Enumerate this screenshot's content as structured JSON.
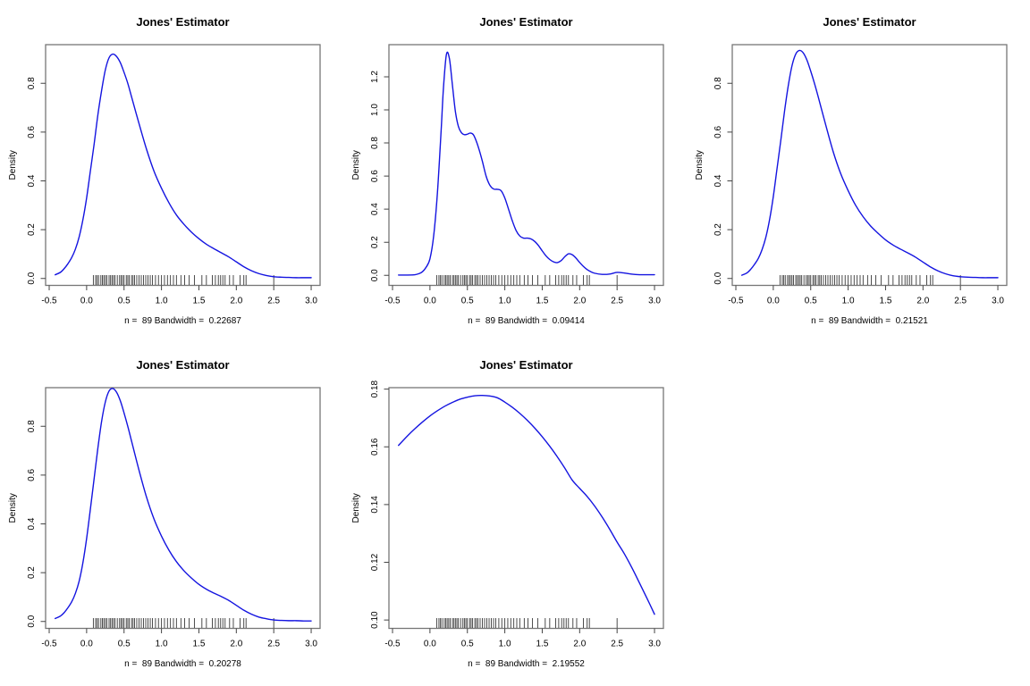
{
  "figure": {
    "background": "#ffffff",
    "curve_color": "#1414e0",
    "box_color": "#777777",
    "tick_color": "#444444",
    "text_color": "#000000",
    "rug_color": "#3a3a3a"
  },
  "rug_points": [
    0.09,
    0.12,
    0.14,
    0.16,
    0.19,
    0.21,
    0.23,
    0.25,
    0.27,
    0.3,
    0.32,
    0.34,
    0.36,
    0.38,
    0.41,
    0.44,
    0.46,
    0.48,
    0.5,
    0.53,
    0.55,
    0.57,
    0.6,
    0.62,
    0.64,
    0.67,
    0.7,
    0.73,
    0.76,
    0.79,
    0.82,
    0.85,
    0.88,
    0.92,
    0.96,
    1.0,
    1.04,
    1.08,
    1.12,
    1.16,
    1.2,
    1.26,
    1.31,
    1.37,
    1.44,
    1.54,
    1.6,
    1.68,
    1.72,
    1.76,
    1.79,
    1.82,
    1.85,
    1.91,
    1.96,
    2.05,
    2.1,
    2.13,
    2.5
  ],
  "chart_data": [
    {
      "type": "line",
      "title": "Jones' Estimator",
      "ylabel": "Density",
      "subtitle": "n =  89 Bandwidth =  0.22687",
      "n": 89,
      "bandwidth": 0.22687,
      "xlim": [
        -0.548,
        3.119
      ],
      "ylim": [
        -0.0286,
        0.9586
      ],
      "x_ticks": {
        "values": [
          -0.5,
          0,
          0.5,
          1,
          1.5,
          2,
          2.5,
          3
        ],
        "labels": [
          "-0.5",
          "0.0",
          "0.5",
          "1.0",
          "1.5",
          "2.0",
          "2.5",
          "3.0"
        ]
      },
      "y_ticks": {
        "values": [
          0,
          0.2,
          0.4,
          0.6,
          0.8
        ],
        "labels": [
          "0.0",
          "0.2",
          "0.4",
          "0.6",
          "0.8"
        ]
      },
      "curve": {
        "x": [
          -0.42,
          -0.35,
          -0.3,
          -0.25,
          -0.2,
          -0.15,
          -0.1,
          -0.05,
          0,
          0.05,
          0.1,
          0.15,
          0.2,
          0.25,
          0.3,
          0.35,
          0.4,
          0.45,
          0.5,
          0.55,
          0.6,
          0.7,
          0.8,
          0.9,
          1,
          1.1,
          1.2,
          1.3,
          1.4,
          1.5,
          1.6,
          1.7,
          1.8,
          1.9,
          2,
          2.1,
          2.2,
          2.3,
          2.4,
          2.5,
          2.6,
          2.7,
          2.8,
          2.9,
          3
        ],
        "y": [
          0.015,
          0.025,
          0.04,
          0.06,
          0.085,
          0.12,
          0.17,
          0.24,
          0.33,
          0.44,
          0.55,
          0.67,
          0.77,
          0.855,
          0.905,
          0.92,
          0.91,
          0.885,
          0.845,
          0.8,
          0.745,
          0.635,
          0.53,
          0.44,
          0.37,
          0.31,
          0.26,
          0.222,
          0.19,
          0.163,
          0.14,
          0.122,
          0.105,
          0.088,
          0.068,
          0.048,
          0.032,
          0.02,
          0.012,
          0.007,
          0.005,
          0.004,
          0.003,
          0.003,
          0.003
        ]
      },
      "grid_cell": {
        "col": 0,
        "row": 0
      }
    },
    {
      "type": "line",
      "title": "Jones' Estimator",
      "ylabel": "Density",
      "subtitle": "n =  89 Bandwidth =  0.09414",
      "n": 89,
      "bandwidth": 0.09414,
      "xlim": [
        -0.548,
        3.119
      ],
      "ylim": [
        -0.0605,
        1.394
      ],
      "x_ticks": {
        "values": [
          -0.5,
          0,
          0.5,
          1,
          1.5,
          2,
          2.5,
          3
        ],
        "labels": [
          "-0.5",
          "0.0",
          "0.5",
          "1.0",
          "1.5",
          "2.0",
          "2.5",
          "3.0"
        ]
      },
      "y_ticks": {
        "values": [
          0,
          0.2,
          0.4,
          0.6,
          0.8,
          1.0,
          1.2
        ],
        "labels": [
          "0.0",
          "0.2",
          "0.4",
          "0.6",
          "0.8",
          "1.0",
          "1.2"
        ]
      },
      "curve": {
        "x": [
          -0.42,
          -0.3,
          -0.2,
          -0.15,
          -0.1,
          -0.05,
          0,
          0.05,
          0.1,
          0.15,
          0.18,
          0.22,
          0.26,
          0.3,
          0.34,
          0.38,
          0.42,
          0.46,
          0.5,
          0.54,
          0.58,
          0.62,
          0.66,
          0.7,
          0.75,
          0.8,
          0.85,
          0.9,
          0.95,
          1,
          1.05,
          1.1,
          1.15,
          1.2,
          1.25,
          1.3,
          1.35,
          1.4,
          1.45,
          1.5,
          1.55,
          1.6,
          1.65,
          1.7,
          1.75,
          1.8,
          1.85,
          1.9,
          1.95,
          2,
          2.05,
          2.1,
          2.15,
          2.2,
          2.3,
          2.4,
          2.5,
          2.6,
          2.7,
          2.8,
          2.9,
          3
        ],
        "y": [
          0.002,
          0.002,
          0.004,
          0.01,
          0.022,
          0.05,
          0.1,
          0.24,
          0.5,
          0.88,
          1.13,
          1.335,
          1.31,
          1.15,
          0.99,
          0.9,
          0.862,
          0.85,
          0.853,
          0.86,
          0.85,
          0.81,
          0.755,
          0.69,
          0.6,
          0.545,
          0.522,
          0.52,
          0.512,
          0.468,
          0.4,
          0.33,
          0.272,
          0.238,
          0.225,
          0.225,
          0.22,
          0.205,
          0.18,
          0.148,
          0.118,
          0.096,
          0.082,
          0.077,
          0.088,
          0.112,
          0.13,
          0.125,
          0.105,
          0.078,
          0.054,
          0.035,
          0.022,
          0.013,
          0.006,
          0.008,
          0.018,
          0.014,
          0.007,
          0.004,
          0.004,
          0.004
        ]
      },
      "grid_cell": {
        "col": 1,
        "row": 0
      }
    },
    {
      "type": "line",
      "title": "Jones' Estimator",
      "ylabel": "Density",
      "subtitle": "n =  89 Bandwidth =  0.21521",
      "n": 89,
      "bandwidth": 0.21521,
      "xlim": [
        -0.548,
        3.119
      ],
      "ylim": [
        -0.0286,
        0.9586
      ],
      "x_ticks": {
        "values": [
          -0.5,
          0,
          0.5,
          1,
          1.5,
          2,
          2.5,
          3
        ],
        "labels": [
          "-0.5",
          "0.0",
          "0.5",
          "1.0",
          "1.5",
          "2.0",
          "2.5",
          "3.0"
        ]
      },
      "y_ticks": {
        "values": [
          0,
          0.2,
          0.4,
          0.6,
          0.8
        ],
        "labels": [
          "0.0",
          "0.2",
          "0.4",
          "0.6",
          "0.8"
        ]
      },
      "curve": {
        "x": [
          -0.42,
          -0.35,
          -0.3,
          -0.25,
          -0.2,
          -0.15,
          -0.1,
          -0.05,
          0,
          0.05,
          0.1,
          0.15,
          0.2,
          0.25,
          0.3,
          0.35,
          0.4,
          0.45,
          0.5,
          0.55,
          0.6,
          0.7,
          0.8,
          0.9,
          1,
          1.1,
          1.2,
          1.3,
          1.4,
          1.5,
          1.6,
          1.7,
          1.8,
          1.9,
          2,
          2.1,
          2.2,
          2.3,
          2.4,
          2.5,
          2.6,
          2.7,
          2.8,
          2.9,
          3
        ],
        "y": [
          0.013,
          0.023,
          0.038,
          0.058,
          0.082,
          0.118,
          0.168,
          0.24,
          0.335,
          0.45,
          0.565,
          0.685,
          0.79,
          0.872,
          0.92,
          0.935,
          0.925,
          0.895,
          0.85,
          0.8,
          0.745,
          0.63,
          0.52,
          0.43,
          0.36,
          0.3,
          0.253,
          0.215,
          0.185,
          0.158,
          0.137,
          0.12,
          0.104,
          0.087,
          0.067,
          0.047,
          0.031,
          0.019,
          0.011,
          0.007,
          0.005,
          0.004,
          0.003,
          0.003,
          0.003
        ]
      },
      "grid_cell": {
        "col": 2,
        "row": 0
      }
    },
    {
      "type": "line",
      "title": "Jones' Estimator",
      "ylabel": "Density",
      "subtitle": "n =  89 Bandwidth =  0.20278",
      "n": 89,
      "bandwidth": 0.20278,
      "xlim": [
        -0.548,
        3.119
      ],
      "ylim": [
        -0.0286,
        0.9586
      ],
      "x_ticks": {
        "values": [
          -0.5,
          0,
          0.5,
          1,
          1.5,
          2,
          2.5,
          3
        ],
        "labels": [
          "-0.5",
          "0.0",
          "0.5",
          "1.0",
          "1.5",
          "2.0",
          "2.5",
          "3.0"
        ]
      },
      "y_ticks": {
        "values": [
          0,
          0.2,
          0.4,
          0.6,
          0.8
        ],
        "labels": [
          "0.0",
          "0.2",
          "0.4",
          "0.6",
          "0.8"
        ]
      },
      "curve": {
        "x": [
          -0.42,
          -0.35,
          -0.3,
          -0.25,
          -0.2,
          -0.15,
          -0.1,
          -0.05,
          0,
          0.05,
          0.1,
          0.15,
          0.2,
          0.25,
          0.3,
          0.35,
          0.4,
          0.45,
          0.5,
          0.55,
          0.6,
          0.7,
          0.8,
          0.9,
          1,
          1.1,
          1.2,
          1.3,
          1.4,
          1.5,
          1.6,
          1.7,
          1.8,
          1.9,
          2,
          2.1,
          2.2,
          2.3,
          2.4,
          2.5,
          2.6,
          2.7,
          2.8,
          2.9,
          3
        ],
        "y": [
          0.012,
          0.022,
          0.036,
          0.056,
          0.08,
          0.115,
          0.165,
          0.24,
          0.34,
          0.46,
          0.585,
          0.71,
          0.82,
          0.9,
          0.945,
          0.955,
          0.94,
          0.905,
          0.855,
          0.8,
          0.74,
          0.62,
          0.51,
          0.42,
          0.35,
          0.292,
          0.245,
          0.208,
          0.178,
          0.152,
          0.132,
          0.116,
          0.102,
          0.086,
          0.066,
          0.046,
          0.03,
          0.018,
          0.011,
          0.006,
          0.004,
          0.003,
          0.003,
          0.002,
          0.002
        ]
      },
      "grid_cell": {
        "col": 0,
        "row": 1
      }
    },
    {
      "type": "line",
      "title": "Jones' Estimator",
      "ylabel": "Density",
      "subtitle": "n =  89 Bandwidth =  2.19552",
      "n": 89,
      "bandwidth": 2.19552,
      "xlim": [
        -0.548,
        3.119
      ],
      "ylim": [
        0.0971,
        0.1805
      ],
      "x_ticks": {
        "values": [
          -0.5,
          0,
          0.5,
          1,
          1.5,
          2,
          2.5,
          3
        ],
        "labels": [
          "-0.5",
          "0.0",
          "0.5",
          "1.0",
          "1.5",
          "2.0",
          "2.5",
          "3.0"
        ]
      },
      "y_ticks": {
        "values": [
          0.1,
          0.12,
          0.14,
          0.16,
          0.18
        ],
        "labels": [
          "0.10",
          "0.12",
          "0.14",
          "0.16",
          "0.18"
        ]
      },
      "curve": {
        "x": [
          -0.42,
          -0.3,
          -0.2,
          -0.1,
          0,
          0.1,
          0.2,
          0.3,
          0.4,
          0.5,
          0.6,
          0.7,
          0.8,
          0.9,
          1,
          1.1,
          1.2,
          1.3,
          1.4,
          1.5,
          1.6,
          1.7,
          1.8,
          1.9,
          2,
          2.1,
          2.2,
          2.3,
          2.4,
          2.5,
          2.6,
          2.7,
          2.8,
          2.9,
          3
        ],
        "y": [
          0.1605,
          0.1638,
          0.1663,
          0.1686,
          0.1707,
          0.1725,
          0.1741,
          0.1754,
          0.1765,
          0.1772,
          0.1777,
          0.1778,
          0.1776,
          0.177,
          0.1755,
          0.1737,
          0.1716,
          0.1692,
          0.1665,
          0.1635,
          0.1602,
          0.1566,
          0.1527,
          0.1485,
          0.1456,
          0.1428,
          0.1395,
          0.1357,
          0.1315,
          0.127,
          0.1228,
          0.118,
          0.1128,
          0.1075,
          0.102
        ]
      },
      "grid_cell": {
        "col": 1,
        "row": 1
      }
    }
  ]
}
